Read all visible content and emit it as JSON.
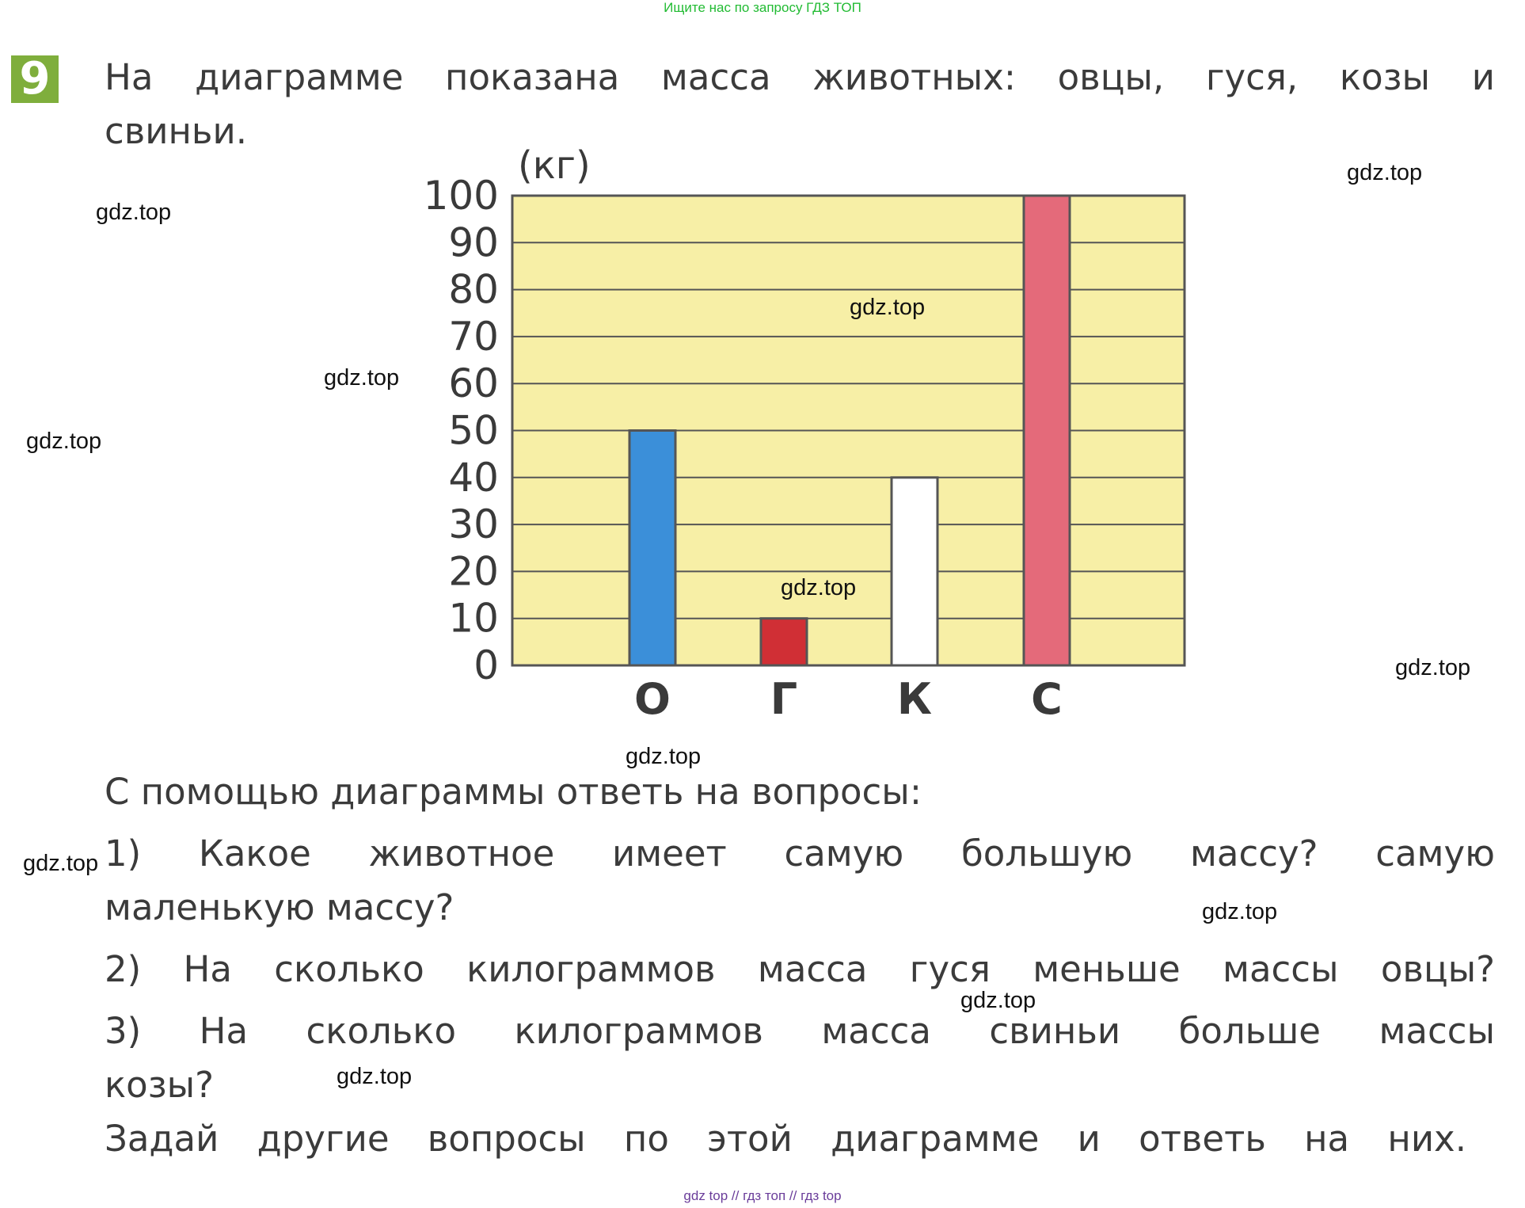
{
  "top_link": "Ищите нас по запросу ГДЗ ТОП",
  "task": {
    "number": "9",
    "intro_line1": "На диаграмме показана масса животных: овцы, гуся, козы и",
    "intro_line2": "свиньи.",
    "prompt": "С помощью диаграммы ответь на вопросы:",
    "q1_line1": "1) Какое животное имеет самую большую массу? самую",
    "q1_line2": "маленькую массу?",
    "q2": "2) На сколько килограммов масса гуся меньше массы овцы?",
    "q3_line1": "3) На сколько килограммов масса свиньи больше массы",
    "q3_line2": "козы?",
    "extra": "Задай другие вопросы по этой диаграмме и ответь на них."
  },
  "watermarks": [
    "gdz.top",
    "gdz.top",
    "gdz.top",
    "gdz.top",
    "gdz.top",
    "gdz.top",
    "gdz.top",
    "gdz.top",
    "gdz.top",
    "gdz.top",
    "gdz.top",
    "gdz.top"
  ],
  "footer": "gdz top // гдз топ // гдз top",
  "colors": {
    "plot_bg": "#f7efa6",
    "grid": "#555555",
    "accent_green": "#7fae3c"
  },
  "chart_data": {
    "type": "bar",
    "unit_label": "(кг)",
    "categories": [
      "О",
      "Г",
      "К",
      "С"
    ],
    "values": [
      50,
      10,
      40,
      100
    ],
    "bar_colors": [
      "#3b8fd9",
      "#d02f35",
      "#ffffff",
      "#e46a7a"
    ],
    "yticks": [
      0,
      10,
      20,
      30,
      40,
      50,
      60,
      70,
      80,
      90,
      100
    ],
    "ylim": [
      0,
      100
    ],
    "grid": true,
    "legend": "none"
  }
}
